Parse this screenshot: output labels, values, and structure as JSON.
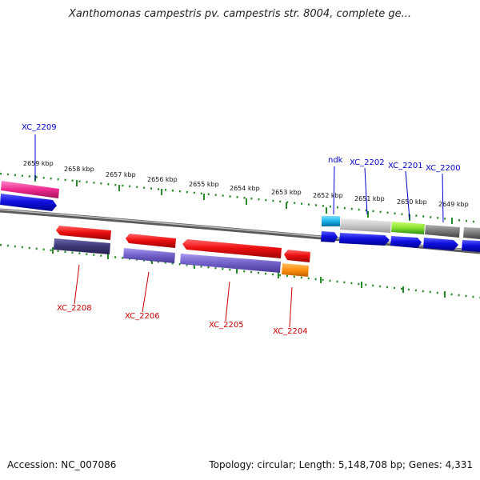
{
  "title": "Xanthomonas campestris pv. campestris str. 8004, complete ge...",
  "footer": {
    "accession": "Accession: NC_007086",
    "summary": "Topology: circular; Length: 5,148,708 bp; Genes: 4,331"
  },
  "ruler_labels": [
    "2659 kbp",
    "2658 kbp",
    "2657 kbp",
    "2656 kbp",
    "2655 kbp",
    "2654 kbp",
    "2653 kbp",
    "2652 kbp",
    "2651 kbp",
    "2650 kbp",
    "2649 kbp"
  ],
  "gene_labels": {
    "top": [
      "XC_2209",
      "ndk",
      "XC_2202",
      "XC_2201",
      "XC_2200"
    ],
    "bottom": [
      "XC_2208",
      "XC_2206",
      "XC_2205",
      "XC_2204"
    ]
  },
  "colors": {
    "top_label": "#0000cc",
    "bottom_label": "#cc0000",
    "ruler": "#2a8a2a",
    "backbone": "#888888",
    "cds_forward": "#1010e0",
    "cds_reverse": "#e01010",
    "gene_reverse": "#7060c8"
  }
}
